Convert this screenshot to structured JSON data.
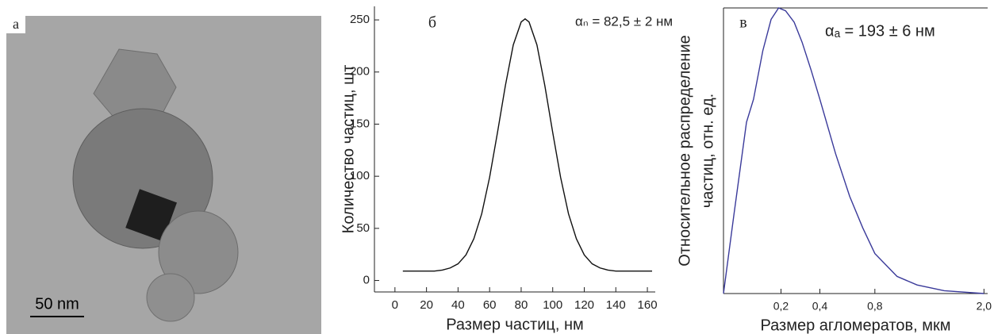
{
  "image": {
    "label": "а",
    "scale_bar": "50 nm"
  },
  "chart_data": [
    {
      "type": "line",
      "panel_label": "б",
      "annotation": "αₙ = 82,5 ± 2 нм",
      "x_label": "Размер частиц, нм",
      "y_label": "Количество частиц, шт",
      "x": [
        5,
        10,
        15,
        20,
        25,
        30,
        35,
        40,
        45,
        50,
        55,
        60,
        65,
        70,
        75,
        80,
        82.5,
        85,
        90,
        95,
        100,
        105,
        110,
        115,
        120,
        125,
        130,
        135,
        140,
        145,
        150,
        155,
        160,
        163
      ],
      "series": [
        {
          "color": "#111111",
          "values": [
            9,
            9,
            9,
            9,
            9,
            10,
            12,
            16,
            24.5,
            40,
            64,
            99,
            142,
            187,
            226,
            248,
            251,
            248,
            226,
            187,
            142,
            99,
            64,
            40,
            24.5,
            16,
            12,
            10,
            9,
            9,
            9,
            9,
            9,
            9
          ]
        }
      ],
      "xlim": [
        -13,
        165
      ],
      "ylim": [
        -11,
        263
      ],
      "xticks": [
        0,
        20,
        40,
        60,
        80,
        100,
        120,
        140,
        160
      ],
      "yticks": [
        0,
        50,
        100,
        150,
        200,
        250
      ]
    },
    {
      "type": "line",
      "panel_label": "в",
      "annotation": "αₐ = 193 ± 6 нм",
      "x_label": "Размер агломератов, мкм",
      "y_label": [
        "Относительное распределение",
        "частиц, отн. ед."
      ],
      "xscale": "sqrt",
      "x": [
        0.03,
        0.05,
        0.08,
        0.1,
        0.13,
        0.16,
        0.19,
        0.22,
        0.26,
        0.3,
        0.35,
        0.4,
        0.5,
        0.6,
        0.7,
        0.8,
        1.0,
        1.2,
        1.5,
        2.0
      ],
      "series": [
        {
          "color": "#3a3a9a",
          "values": [
            0,
            0.28,
            0.6,
            0.68,
            0.85,
            0.96,
            1.0,
            0.99,
            0.95,
            0.88,
            0.78,
            0.68,
            0.49,
            0.34,
            0.23,
            0.14,
            0.06,
            0.03,
            0.01,
            0
          ]
        }
      ],
      "xlim": [
        0.03,
        2.05
      ],
      "ylim": [
        0,
        1
      ],
      "xticks": [
        {
          "value": 0.2,
          "label": "0,2"
        },
        {
          "value": 0.4,
          "label": "0,4"
        },
        {
          "value": 0.8,
          "label": "0,8"
        },
        {
          "value": 2.0,
          "label": "2,0"
        }
      ]
    }
  ]
}
